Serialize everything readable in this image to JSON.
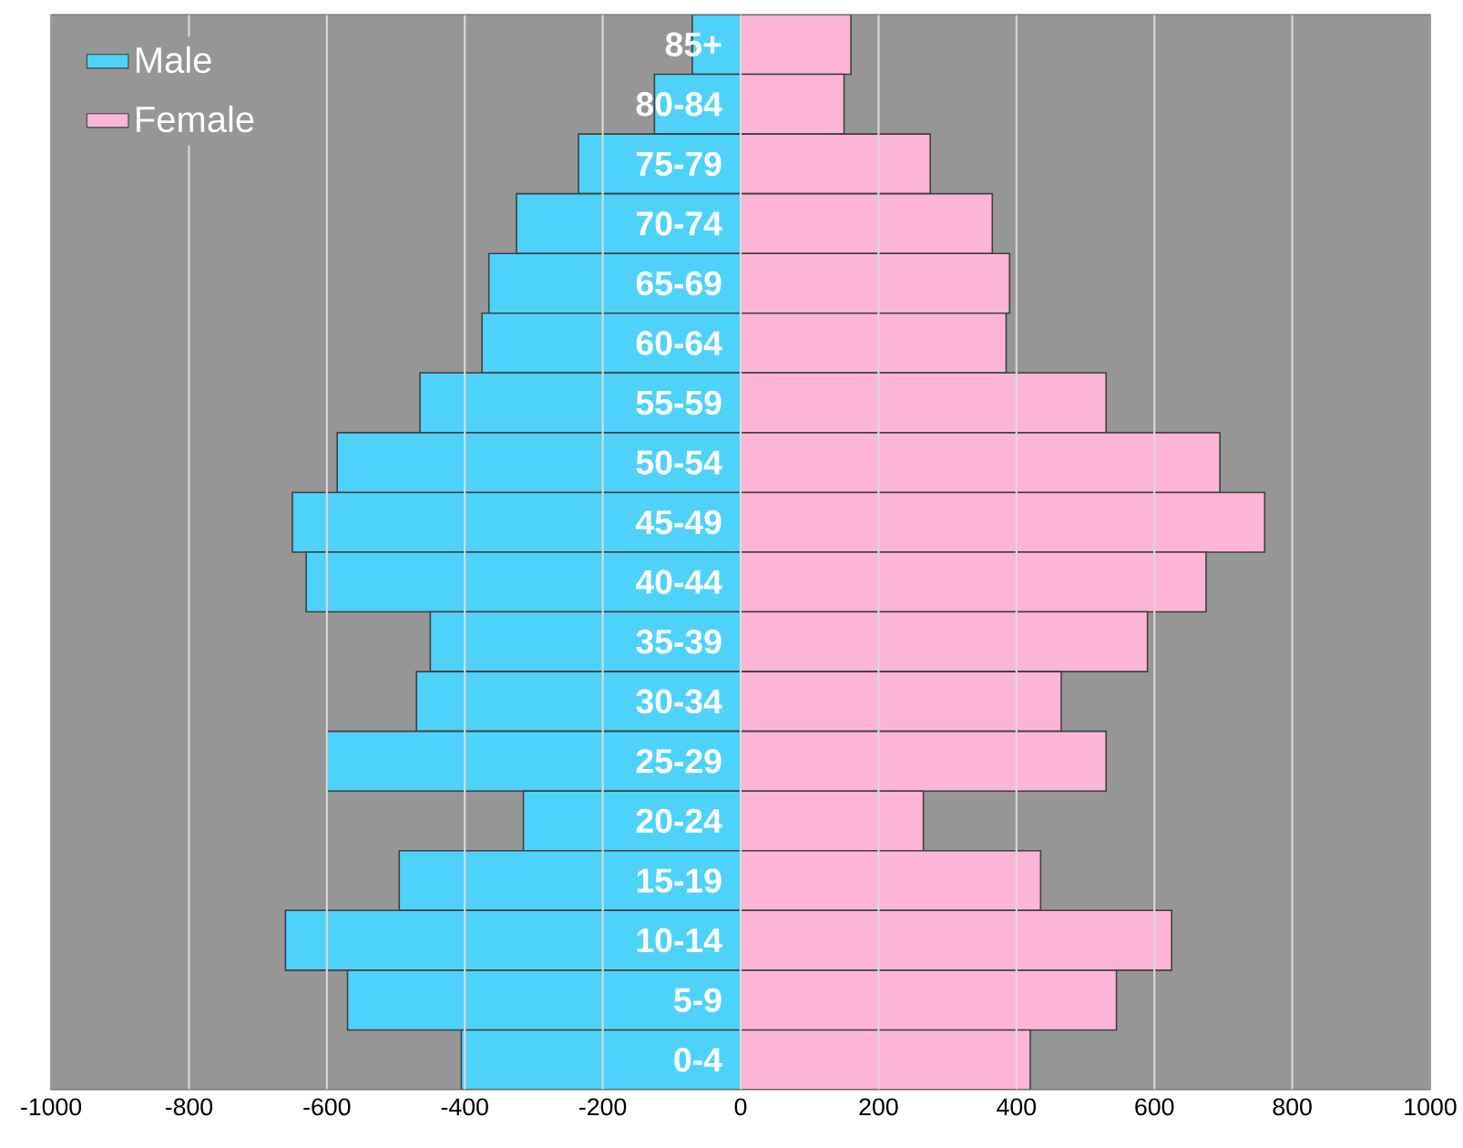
{
  "chart_data": {
    "type": "bar",
    "orientation": "horizontal",
    "categories": [
      "85+",
      "80-84",
      "75-79",
      "70-74",
      "65-69",
      "60-64",
      "55-59",
      "50-54",
      "45-49",
      "40-44",
      "35-39",
      "30-34",
      "25-29",
      "20-24",
      "15-19",
      "10-14",
      "5-9",
      "0-4"
    ],
    "series": [
      {
        "name": "Male",
        "color": "#4fd2fa",
        "values": [
          -70,
          -125,
          -235,
          -325,
          -365,
          -375,
          -465,
          -585,
          -650,
          -630,
          -450,
          -470,
          -600,
          -315,
          -495,
          -660,
          -570,
          -405
        ]
      },
      {
        "name": "Female",
        "color": "#fdb5d7",
        "values": [
          160,
          150,
          275,
          365,
          390,
          385,
          530,
          695,
          760,
          675,
          590,
          465,
          530,
          265,
          435,
          625,
          545,
          420
        ]
      }
    ],
    "xlim": [
      -1000,
      1000
    ],
    "xticks": [
      -1000,
      -800,
      -600,
      -400,
      -200,
      0,
      200,
      400,
      600,
      800,
      1000
    ],
    "stacked": true,
    "grid": "x",
    "legend": "top left"
  }
}
